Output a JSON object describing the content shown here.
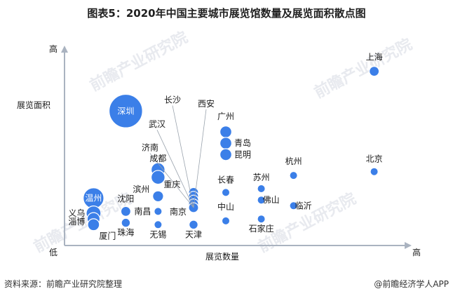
{
  "title": "图表5：2020年中国主要城市展览馆数量及展览面积散点图",
  "source": "资料来源：前瞻产业研究院整理",
  "brand": "@前瞻经济学人APP",
  "watermark": "前瞻产业研究院",
  "colors": {
    "bubble": "#3b7fe8",
    "bubble_stroke": "#ffffff",
    "axis": "#aab3c0",
    "leader": "#9aa3ad"
  },
  "chart_data": {
    "type": "scatter",
    "xlabel": "展览数量",
    "ylabel": "展览面积",
    "x_high": "高",
    "y_high": "高",
    "origin": "低",
    "x_tick_labels": [],
    "y_tick_labels": [],
    "grid": false,
    "legend": "none",
    "xlim": [
      0,
      100
    ],
    "ylim": [
      0,
      100
    ],
    "points": [
      {
        "name": "上海",
        "x": 96,
        "y": 92,
        "size": 1.0
      },
      {
        "name": "北京",
        "x": 96,
        "y": 39,
        "size": 0.8
      },
      {
        "name": "深圳",
        "x": 19,
        "y": 71,
        "size": 3.4
      },
      {
        "name": "长沙",
        "x": 40,
        "y": 28,
        "size": 1.0
      },
      {
        "name": "西安",
        "x": 40,
        "y": 26,
        "size": 1.0
      },
      {
        "name": "武汉",
        "x": 40,
        "y": 24,
        "size": 1.0
      },
      {
        "name": "济南",
        "x": 40,
        "y": 22,
        "size": 1.0
      },
      {
        "name": "广州",
        "x": 50,
        "y": 60,
        "size": 1.2
      },
      {
        "name": "青岛",
        "x": 50,
        "y": 54,
        "size": 1.2
      },
      {
        "name": "昆明",
        "x": 50,
        "y": 48,
        "size": 1.2
      },
      {
        "name": "杭州",
        "x": 71,
        "y": 37,
        "size": 0.8
      },
      {
        "name": "成都",
        "x": 29,
        "y": 40,
        "size": 1.4
      },
      {
        "name": "重庆",
        "x": 29,
        "y": 36,
        "size": 1.4
      },
      {
        "name": "长春",
        "x": 50,
        "y": 28,
        "size": 0.8
      },
      {
        "name": "苏州",
        "x": 61,
        "y": 30,
        "size": 0.8
      },
      {
        "name": "滨州",
        "x": 29,
        "y": 26,
        "size": 1.1
      },
      {
        "name": "佛山",
        "x": 61,
        "y": 24,
        "size": 0.8
      },
      {
        "name": "临沂",
        "x": 71,
        "y": 21,
        "size": 0.8
      },
      {
        "name": "温州",
        "x": 9,
        "y": 25,
        "size": 2.1
      },
      {
        "name": "沈阳",
        "x": 19,
        "y": 18,
        "size": 1.0
      },
      {
        "name": "南昌",
        "x": 29,
        "y": 18,
        "size": 0.8
      },
      {
        "name": "南京",
        "x": 40,
        "y": 20,
        "size": 1.0
      },
      {
        "name": "中山",
        "x": 50,
        "y": 13,
        "size": 0.8
      },
      {
        "name": "石家庄",
        "x": 61,
        "y": 14,
        "size": 0.8
      },
      {
        "name": "义乌",
        "x": 9,
        "y": 17,
        "size": 1.5
      },
      {
        "name": "淄博",
        "x": 9,
        "y": 14,
        "size": 1.3
      },
      {
        "name": "珠海",
        "x": 19,
        "y": 12,
        "size": 0.9
      },
      {
        "name": "天津",
        "x": 40,
        "y": 11,
        "size": 0.9
      },
      {
        "name": "厦门",
        "x": 9,
        "y": 11,
        "size": 1.2
      },
      {
        "name": "无锡",
        "x": 29,
        "y": 11,
        "size": 0.8
      }
    ]
  }
}
